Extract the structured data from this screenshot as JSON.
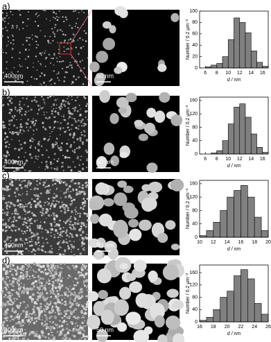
{
  "chart_data": [
    {
      "type": "histogram",
      "panel_label": "a)",
      "scale_labels": [
        "400nm",
        "50 nm"
      ],
      "xlabel": "d / nm",
      "ylabel": "Number / 0.2 µm⁻²",
      "bins": [
        6,
        7,
        8,
        9,
        10,
        11,
        12,
        13,
        14,
        15,
        16,
        17
      ],
      "values": [
        2,
        5,
        8,
        20,
        50,
        88,
        80,
        62,
        30,
        10,
        3
      ],
      "color": "#808080",
      "xlim": [
        5,
        17
      ],
      "xticks": [
        6,
        8,
        10,
        12,
        14,
        16
      ],
      "ylim": [
        0,
        100
      ],
      "yticks": [
        0,
        20,
        40,
        60,
        80,
        100
      ]
    },
    {
      "type": "histogram",
      "panel_label": "b)",
      "scale_labels": [
        "400nm",
        "50 nm"
      ],
      "xlabel": "d / nm",
      "ylabel": "Number / 0.2 µm⁻²",
      "bins": [
        7,
        8,
        9,
        10,
        11,
        12,
        13,
        14,
        15,
        16,
        17
      ],
      "values": [
        3,
        10,
        40,
        90,
        140,
        150,
        110,
        60,
        20,
        5
      ],
      "color": "#808080",
      "xlim": [
        5,
        17
      ],
      "xticks": [
        6,
        8,
        10,
        12,
        14,
        16
      ],
      "ylim": [
        0,
        170
      ],
      "yticks": [
        0,
        40,
        80,
        120,
        160
      ]
    },
    {
      "type": "histogram",
      "panel_label": "c)",
      "scale_labels": [
        "400nm",
        "50 nm"
      ],
      "xlabel": "d / nm",
      "ylabel": "Number / 0.2 µm⁻²",
      "bins": [
        10,
        11,
        12,
        13,
        14,
        15,
        16,
        17,
        18,
        19,
        20
      ],
      "values": [
        5,
        20,
        45,
        80,
        120,
        140,
        155,
        120,
        60,
        20
      ],
      "color": "#808080",
      "xlim": [
        10,
        20
      ],
      "xticks": [
        10,
        12,
        14,
        16,
        18,
        20
      ],
      "ylim": [
        0,
        170
      ],
      "yticks": [
        0,
        40,
        80,
        120,
        160
      ]
    },
    {
      "type": "histogram",
      "panel_label": "d)",
      "scale_labels": [
        "400nm",
        "50 nm"
      ],
      "xlabel": "d / nm",
      "ylabel": "Number / 0.2 µm⁻²",
      "bins": [
        16,
        17,
        18,
        19,
        20,
        21,
        22,
        23,
        24,
        25,
        26
      ],
      "values": [
        5,
        15,
        40,
        80,
        100,
        150,
        170,
        140,
        60,
        25
      ],
      "color": "#808080",
      "xlim": [
        16,
        26
      ],
      "xticks": [
        16,
        18,
        20,
        22,
        24,
        26
      ],
      "ylim": [
        0,
        185
      ],
      "yticks": [
        0,
        40,
        80,
        120,
        160
      ]
    }
  ]
}
